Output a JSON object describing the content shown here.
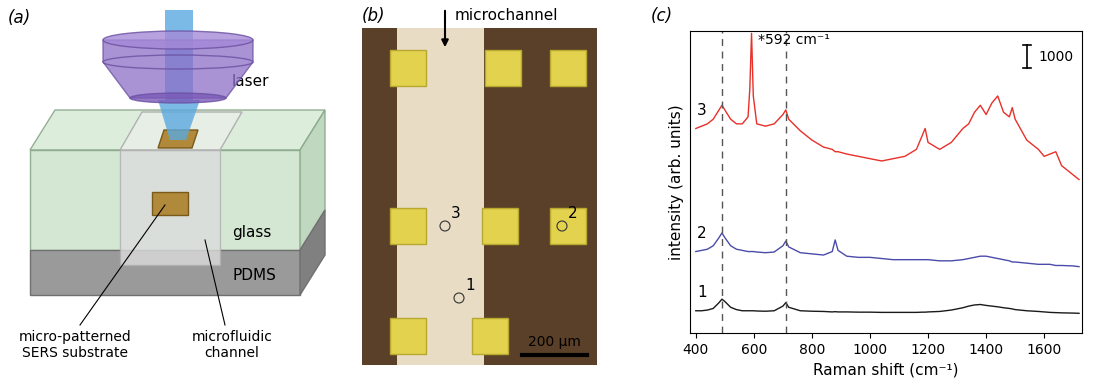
{
  "panel_a": {
    "label": "(a)",
    "laser": "laser",
    "glass": "glass",
    "pdms": "PDMS",
    "substrate": "micro-patterned\nSERS substrate",
    "channel": "microfluidic\nchannel"
  },
  "panel_b": {
    "label": "(b)",
    "channel": "microchannel",
    "spots": [
      "1",
      "2",
      "3"
    ],
    "scale_bar": "200 µm"
  },
  "chart_data": {
    "type": "line",
    "title": "(c)",
    "x_label": "Raman shift (cm⁻¹)",
    "y_label": "intensity (arb. units)",
    "x": [
      400,
      420,
      440,
      460,
      480,
      490,
      500,
      520,
      540,
      560,
      580,
      586,
      592,
      598,
      610,
      640,
      670,
      700,
      710,
      720,
      760,
      800,
      840,
      870,
      880,
      890,
      920,
      960,
      1000,
      1040,
      1080,
      1120,
      1160,
      1180,
      1190,
      1200,
      1240,
      1280,
      1320,
      1340,
      1360,
      1380,
      1400,
      1420,
      1440,
      1460,
      1480,
      1490,
      1500,
      1540,
      1580,
      1600,
      1620,
      1640,
      1660,
      1700,
      1720
    ],
    "series": [
      {
        "name": "1",
        "color": "#1a1a1a",
        "values": [
          950,
          950,
          980,
          1050,
          1300,
          1450,
          1350,
          1100,
          1000,
          950,
          950,
          950,
          950,
          950,
          940,
          930,
          950,
          1150,
          1300,
          1100,
          950,
          930,
          920,
          900,
          910,
          900,
          900,
          890,
          890,
          880,
          880,
          880,
          880,
          890,
          890,
          900,
          920,
          980,
          1080,
          1150,
          1200,
          1220,
          1180,
          1150,
          1120,
          1080,
          1050,
          1030,
          1000,
          950,
          920,
          900,
          880,
          870,
          860,
          850,
          840
        ]
      },
      {
        "name": "2",
        "color": "#4b4bab",
        "values": [
          3500,
          3550,
          3600,
          3750,
          4100,
          4300,
          4100,
          3750,
          3600,
          3550,
          3500,
          3500,
          3500,
          3500,
          3480,
          3450,
          3480,
          3750,
          3950,
          3700,
          3450,
          3400,
          3350,
          3500,
          4000,
          3550,
          3300,
          3250,
          3250,
          3200,
          3150,
          3150,
          3150,
          3150,
          3150,
          3150,
          3100,
          3100,
          3150,
          3200,
          3250,
          3300,
          3300,
          3250,
          3200,
          3150,
          3100,
          3050,
          3050,
          3000,
          2950,
          2950,
          2950,
          2900,
          2900,
          2880,
          2850
        ]
      },
      {
        "name": "3",
        "color": "#e8302a",
        "values": [
          8800,
          8900,
          9000,
          9200,
          9600,
          9800,
          9600,
          9200,
          9000,
          9000,
          9300,
          10500,
          12900,
          10200,
          9000,
          8900,
          9000,
          9400,
          9600,
          9200,
          8700,
          8300,
          8000,
          7900,
          7800,
          7800,
          7700,
          7600,
          7500,
          7400,
          7500,
          7600,
          7900,
          8500,
          8800,
          8200,
          7900,
          8200,
          8800,
          9000,
          9500,
          9800,
          9400,
          9900,
          10200,
          9500,
          9300,
          9700,
          9200,
          8300,
          7900,
          7600,
          7700,
          7800,
          7200,
          6800,
          6600
        ]
      }
    ],
    "xlim": [
      380,
      1730
    ],
    "xticks": [
      400,
      600,
      800,
      1000,
      1200,
      1400,
      1600
    ],
    "ylim": [
      0,
      13000
    ],
    "yticks": [],
    "tick_labels": "x",
    "scale_bar": 1000,
    "dashed_lines_x": [
      490,
      710
    ],
    "annotations": [
      {
        "text": "*592 cm⁻¹",
        "x": 592,
        "series": "3"
      }
    ]
  }
}
